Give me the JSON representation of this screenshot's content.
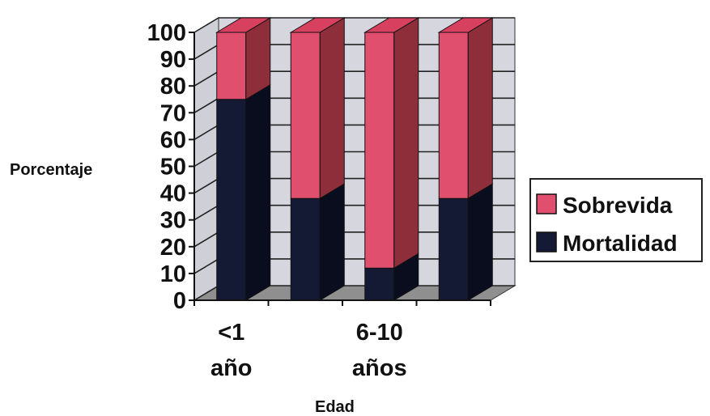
{
  "chart_data": {
    "type": "bar",
    "stacked": true,
    "style": "3d",
    "title": "",
    "xlabel": "Edad",
    "ylabel": "Porcentaje",
    "ylim": [
      0,
      100
    ],
    "yticks": [
      0,
      10,
      20,
      30,
      40,
      50,
      60,
      70,
      80,
      90,
      100
    ],
    "grid": true,
    "legend_position": "right",
    "categories": [
      "<1 año",
      "",
      "6-10 años",
      ""
    ],
    "category_label_lines": [
      [
        "<1",
        "año"
      ],
      [
        "",
        ""
      ],
      [
        "6-10",
        "años"
      ],
      [
        "",
        ""
      ]
    ],
    "series": [
      {
        "name": "Mortalidad",
        "values": [
          75,
          38,
          12,
          38
        ],
        "color": "#141a33"
      },
      {
        "name": "Sobrevida",
        "values": [
          25,
          62,
          88,
          62
        ],
        "color": "#e0506e"
      }
    ]
  }
}
